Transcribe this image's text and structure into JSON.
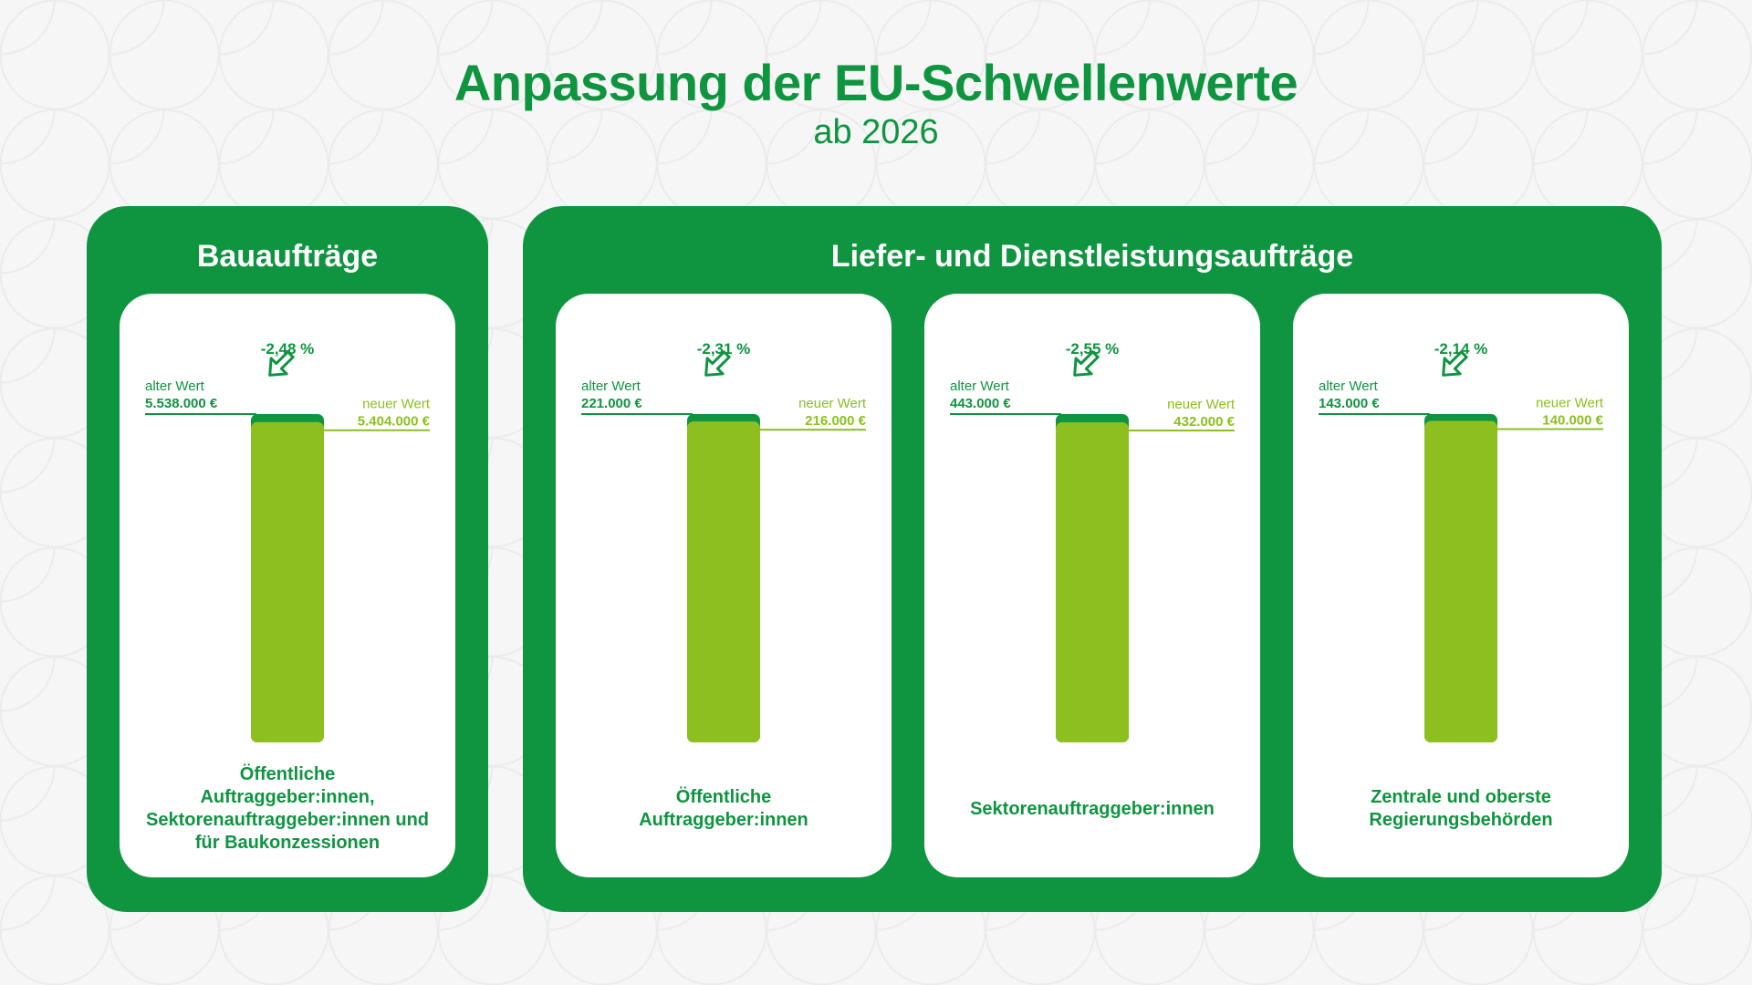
{
  "title": "Anpassung der EU-Schwellenwerte",
  "subtitle": "ab 2026",
  "groups": [
    {
      "title": "Bauaufträge"
    },
    {
      "title": "Liefer- und Dienstleistungsaufträge"
    }
  ],
  "colors": {
    "dark_green": "#0f9440",
    "light_green": "#8cbf1f",
    "white": "#ffffff"
  },
  "chart_data": {
    "type": "bar",
    "old_label": "alter Wert",
    "new_label": "neuer Wert",
    "currency": "€",
    "charts": [
      {
        "old_value": 5538000,
        "new_value": 5404000,
        "old_text": "5.538.000 €",
        "new_text": "5.404.000 €",
        "change": "-2,48 %",
        "category_lines": [
          "Öffentliche",
          "Auftraggeber:innen,",
          "Sektorenauftraggeber:innen und",
          "für Baukonzessionen"
        ]
      },
      {
        "old_value": 221000,
        "new_value": 216000,
        "old_text": "221.000 €",
        "new_text": "216.000 €",
        "change": "-2,31 %",
        "category_lines": [
          "Öffentliche",
          "Auftraggeber:innen"
        ]
      },
      {
        "old_value": 443000,
        "new_value": 432000,
        "old_text": "443.000 €",
        "new_text": "432.000 €",
        "change": "-2,55 %",
        "category_lines": [
          "Sektorenauftraggeber:innen"
        ]
      },
      {
        "old_value": 143000,
        "new_value": 140000,
        "old_text": "143.000 €",
        "new_text": "140.000 €",
        "change": "-2,14 %",
        "category_lines": [
          "Zentrale und oberste",
          "Regierungsbehörden"
        ]
      }
    ]
  }
}
